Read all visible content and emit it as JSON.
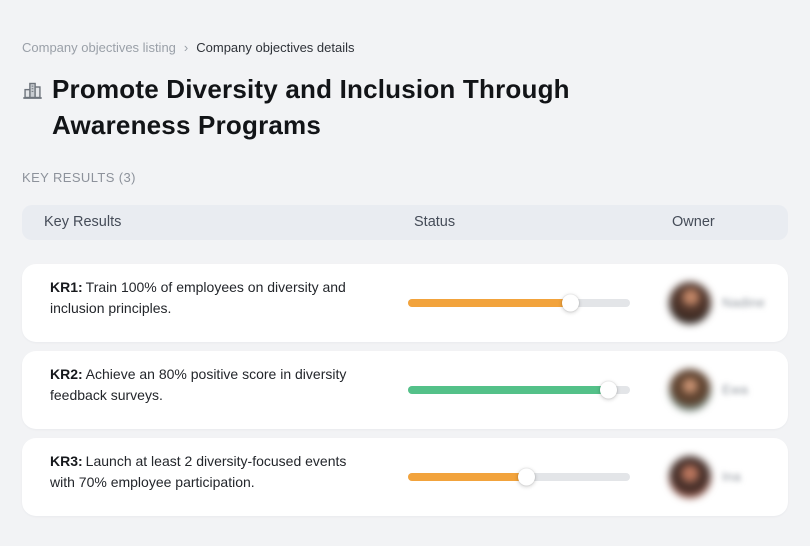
{
  "breadcrumb": {
    "items": [
      {
        "label": "Company objectives listing"
      },
      {
        "label": "Company objectives details"
      }
    ],
    "separator": "›"
  },
  "header": {
    "icon": "buildings-icon",
    "title": "Promote Diversity and Inclusion Through Awareness Programs"
  },
  "section": {
    "label": "KEY RESULTS (3)"
  },
  "colors": {
    "orange": "#F2A33C",
    "green": "#54C189",
    "track": "#E3E5E8",
    "header_pill": "#E9ECF1",
    "page_background": "#F2F3F5"
  },
  "table": {
    "columns": [
      "Key Results",
      "Status",
      "Owner"
    ],
    "rows": [
      {
        "kr": "KR1:",
        "text": "Train 100% of employees on diversity and inclusion principles.",
        "progress": 73,
        "color": "#F2A33C",
        "owner": "Nadine"
      },
      {
        "kr": "KR2:",
        "text": "Achieve an 80% positive score in diversity feedback surveys.",
        "progress": 90,
        "color": "#54C189",
        "owner": "Ewa"
      },
      {
        "kr": "KR3:",
        "text": "Launch at least 2 diversity-focused events with 70% employee participation.",
        "progress": 53,
        "color": "#F2A33C",
        "owner": "Ina"
      }
    ]
  }
}
